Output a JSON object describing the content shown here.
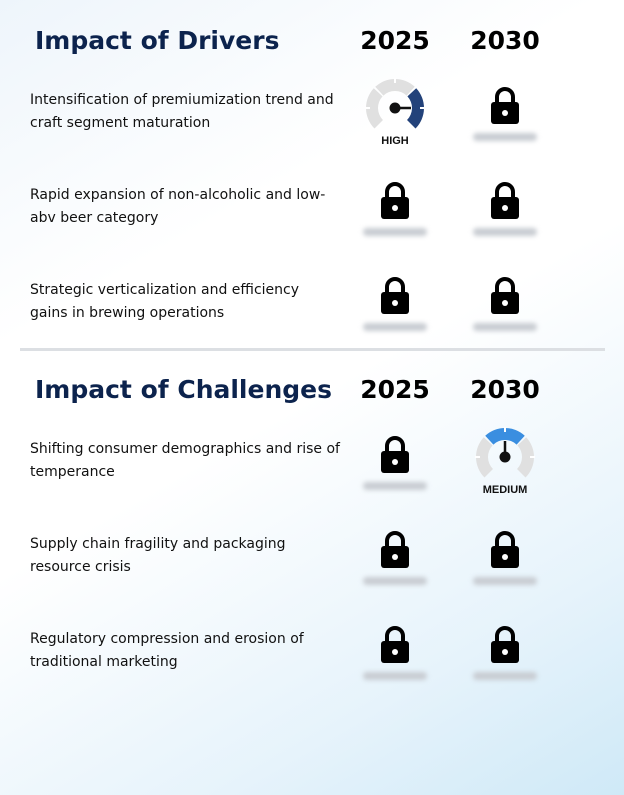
{
  "drivers": {
    "title": "Impact of Drivers",
    "years": [
      "2025",
      "2030"
    ],
    "rows": [
      {
        "text": "Intensification of premiumization trend and craft segment maturation",
        "cells": [
          {
            "type": "gauge",
            "level": "high",
            "label": "HIGH",
            "color": "#23427a"
          },
          {
            "type": "locked"
          }
        ]
      },
      {
        "text": "Rapid expansion of non-alcoholic and low-abv beer category",
        "cells": [
          {
            "type": "locked"
          },
          {
            "type": "locked"
          }
        ]
      },
      {
        "text": "Strategic verticalization and efficiency gains in brewing operations",
        "cells": [
          {
            "type": "locked"
          },
          {
            "type": "locked"
          }
        ]
      }
    ]
  },
  "challenges": {
    "title": "Impact of Challenges",
    "years": [
      "2025",
      "2030"
    ],
    "rows": [
      {
        "text": "Shifting consumer demographics and rise of temperance",
        "cells": [
          {
            "type": "locked"
          },
          {
            "type": "gauge",
            "level": "medium",
            "label": "MEDIUM",
            "color": "#3a8ee0"
          }
        ]
      },
      {
        "text": "Supply chain fragility and packaging resource crisis",
        "cells": [
          {
            "type": "locked"
          },
          {
            "type": "locked"
          }
        ]
      },
      {
        "text": "Regulatory compression and erosion of traditional marketing",
        "cells": [
          {
            "type": "locked"
          },
          {
            "type": "locked"
          }
        ]
      }
    ]
  }
}
